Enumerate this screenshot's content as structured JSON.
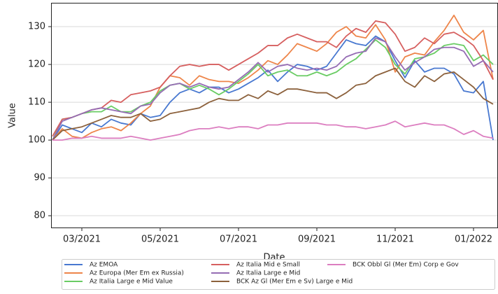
{
  "chart_data": {
    "type": "line",
    "x_label": "Date",
    "y_label": "Value",
    "categories": [
      null,
      null,
      null,
      "03/2021",
      null,
      null,
      null,
      null,
      null,
      null,
      null,
      "05/2021",
      null,
      null,
      null,
      null,
      null,
      null,
      null,
      "07/2021",
      null,
      null,
      null,
      null,
      null,
      null,
      null,
      "09/2021",
      null,
      null,
      null,
      null,
      null,
      null,
      null,
      "11/2021",
      null,
      null,
      null,
      null,
      null,
      null,
      null,
      "01/2022",
      null,
      null
    ],
    "ylim": [
      76.7,
      136.3
    ],
    "yticks": [
      80,
      90,
      100,
      110,
      120,
      130
    ],
    "grid": true,
    "series": [
      {
        "name": "Az EMOA",
        "color": "#4878d0",
        "values": [
          100,
          104,
          103,
          102,
          104.5,
          103.5,
          105.5,
          104.5,
          104,
          107,
          106,
          106.5,
          110,
          112.5,
          113.5,
          112.5,
          114,
          114,
          112.5,
          113.5,
          115,
          116.5,
          118.5,
          115.5,
          118,
          120,
          119.5,
          118.5,
          119.5,
          123,
          126.5,
          125.5,
          125,
          127.5,
          126,
          121,
          116.5,
          121,
          118,
          119,
          119,
          117.5,
          113,
          112.5,
          115.5,
          100
        ]
      },
      {
        "name": "Az Europa (Mer Em ex Russia)",
        "color": "#ee854a",
        "values": [
          100,
          103,
          101,
          100.5,
          102,
          103,
          103.5,
          102.5,
          104.5,
          107,
          109,
          114,
          117,
          116.5,
          114.5,
          117,
          116,
          115.5,
          115.5,
          115,
          116.5,
          118.5,
          121,
          120,
          122.5,
          125.5,
          124.5,
          123.5,
          125.5,
          128.5,
          130,
          127.5,
          127,
          130.5,
          126.5,
          118,
          122,
          123,
          122.5,
          126,
          129,
          133,
          128.5,
          126.5,
          129,
          116
        ]
      },
      {
        "name": "Az Italia Large e Mid Value",
        "color": "#6acc64",
        "values": [
          100,
          105.5,
          106,
          107,
          107.5,
          107.5,
          109,
          107.5,
          107.5,
          109,
          110,
          113,
          114.5,
          115,
          113.5,
          114.5,
          113.5,
          112,
          113.5,
          115.5,
          117.5,
          120,
          117,
          118,
          118.5,
          117,
          117,
          118,
          117,
          118,
          120,
          121.5,
          124,
          126.5,
          124.5,
          120,
          117.5,
          121.5,
          122,
          123,
          125,
          125.5,
          125,
          121,
          122.5,
          120
        ]
      },
      {
        "name": "Az Italia Mid e Small",
        "color": "#d65f5f",
        "values": [
          101,
          105.5,
          106,
          107,
          108,
          108.5,
          110.5,
          110,
          112,
          112.5,
          113,
          114,
          117,
          119.5,
          120,
          119.5,
          120,
          120,
          118.5,
          120,
          121.5,
          123,
          125,
          125,
          127,
          128,
          127,
          126,
          126,
          124.5,
          127.5,
          129.5,
          128.5,
          131.5,
          131,
          128,
          123.5,
          124.5,
          127,
          125.5,
          128,
          128.5,
          127,
          125,
          121,
          116
        ]
      },
      {
        "name": "Az Italia Large e Mid",
        "color": "#956cb4",
        "values": [
          100,
          105,
          106,
          107,
          108,
          108.5,
          108,
          107.5,
          107,
          109,
          109.5,
          112.5,
          114.5,
          115,
          114,
          115,
          114,
          113.5,
          114,
          116,
          118,
          120.5,
          118,
          119.5,
          120,
          119,
          118.5,
          119,
          118.5,
          119.5,
          122,
          123,
          123.5,
          127,
          126,
          122,
          118.5,
          120.5,
          122,
          124,
          124.5,
          124.5,
          123.5,
          119.5,
          121,
          118
        ]
      },
      {
        "name": "BCK Az Gl (Mer Em e Sv) Large e Mid",
        "color": "#8c613c",
        "values": [
          100,
          102.5,
          103,
          103.5,
          104.5,
          105.5,
          106.5,
          106,
          106,
          107,
          105,
          105.5,
          107,
          107.5,
          108,
          108.5,
          110,
          111,
          110.5,
          110.5,
          112,
          111,
          113,
          112,
          113.5,
          113.5,
          113,
          112.5,
          112.5,
          111,
          112.5,
          114.5,
          115,
          117,
          118,
          119,
          115.5,
          114,
          117,
          115.5,
          117.5,
          118,
          116,
          114,
          111,
          109.5
        ]
      },
      {
        "name": "BCK Obbl Gl (Mer Em) Corp e Gov",
        "color": "#dc7ec0",
        "values": [
          100,
          100,
          100.5,
          100.5,
          101,
          100.5,
          100.5,
          100.5,
          101,
          100.5,
          100,
          100.5,
          101,
          101.5,
          102.5,
          103,
          103,
          103.5,
          103,
          103.5,
          103.5,
          103,
          104,
          104,
          104.5,
          104.5,
          104.5,
          104.5,
          104,
          104,
          103.5,
          103.5,
          103,
          103.5,
          104,
          105,
          103.5,
          104,
          104.5,
          104,
          104,
          103,
          101.5,
          102.5,
          101,
          100.5
        ]
      }
    ]
  }
}
